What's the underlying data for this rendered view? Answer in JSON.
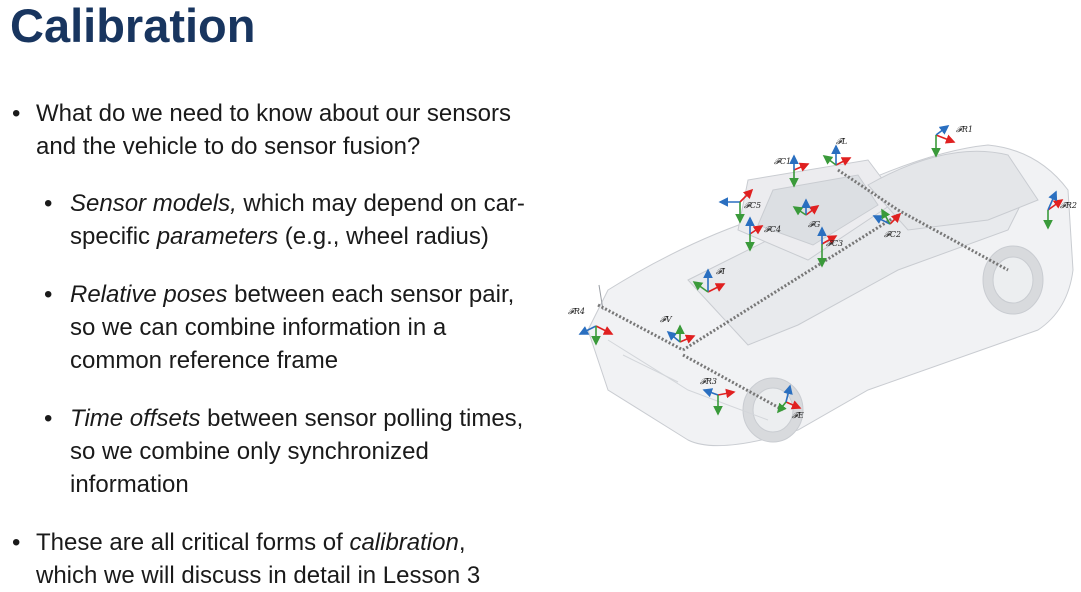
{
  "slide": {
    "title": "Calibration"
  },
  "bullets": {
    "b1": {
      "line1": "What do we need to know about our sensors",
      "line2": "and the vehicle to do sensor fusion?"
    },
    "s1": {
      "em1": "Sensor models,",
      "text1": " which may depend on car-",
      "text2": "specific ",
      "em2": "parameters",
      "text3": " (e.g., wheel radius)"
    },
    "s2": {
      "em1": "Relative poses",
      "text1": " between each sensor pair,",
      "line2": "so we can combine information in a",
      "line3": "common reference frame"
    },
    "s3": {
      "em1": "Time offsets",
      "text1": " between sensor polling times,",
      "line2": "so we combine only synchronized",
      "line3": "information"
    },
    "b2": {
      "text1": "These are all critical forms of ",
      "em1": "calibration",
      "text2": ",",
      "line2": "which we will discuss in detail in Lesson 3"
    }
  },
  "diagram": {
    "frames": {
      "L": "𝓕L",
      "R1": "𝓕R1",
      "R2": "𝓕R2",
      "R3": "𝓕R3",
      "R4": "𝓕R4",
      "C1": "𝓕C1",
      "C2": "𝓕C2",
      "C3": "𝓕C3",
      "C4": "𝓕C4",
      "C5": "𝓕C5",
      "G": "𝓕G",
      "I": "𝓕I",
      "V": "𝓕V",
      "E": "𝓕E"
    },
    "colors": {
      "axis_x": "#e02020",
      "axis_y": "#2a6fc0",
      "axis_z": "#3a9a3a",
      "link": "#777777"
    }
  }
}
